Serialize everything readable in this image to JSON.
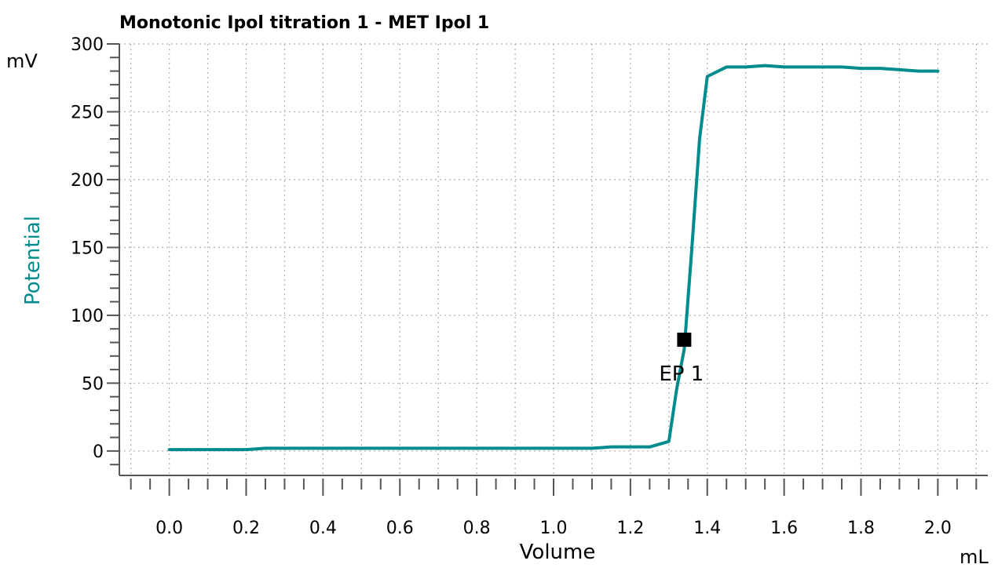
{
  "chart_data": {
    "type": "line",
    "title": "Monotonic Ipol titration 1 - MET Ipol  1",
    "xlabel": "Volume",
    "ylabel": "Potential",
    "x_unit": "mL",
    "y_unit": "mV",
    "xlim": [
      -0.13,
      2.13
    ],
    "ylim": [
      -18,
      300
    ],
    "x_ticks": [
      "0.0",
      "0.2",
      "0.4",
      "0.6",
      "0.8",
      "1.0",
      "1.2",
      "1.4",
      "1.6",
      "1.8",
      "2.0"
    ],
    "y_ticks": [
      "0",
      "50",
      "100",
      "150",
      "200",
      "250",
      "300"
    ],
    "grid": true,
    "series": [
      {
        "color": "#008C8C",
        "x": [
          0.0,
          0.1,
          0.2,
          0.25,
          0.3,
          0.4,
          0.5,
          0.6,
          0.7,
          0.8,
          0.9,
          1.0,
          1.05,
          1.1,
          1.15,
          1.2,
          1.25,
          1.3,
          1.32,
          1.34,
          1.36,
          1.38,
          1.4,
          1.45,
          1.5,
          1.55,
          1.6,
          1.65,
          1.7,
          1.75,
          1.8,
          1.85,
          1.9,
          1.95,
          2.0
        ],
        "y": [
          1,
          1,
          1,
          2,
          2,
          2,
          2,
          2,
          2,
          2,
          2,
          2,
          2,
          2,
          3,
          3,
          3,
          7,
          45,
          75,
          150,
          230,
          276,
          283,
          283,
          284,
          283,
          283,
          283,
          283,
          282,
          282,
          281,
          280,
          280
        ]
      }
    ],
    "annotations": [
      {
        "label": "EP 1",
        "x": 1.34,
        "y": 82,
        "marker": "square",
        "color": "#000000"
      }
    ]
  }
}
